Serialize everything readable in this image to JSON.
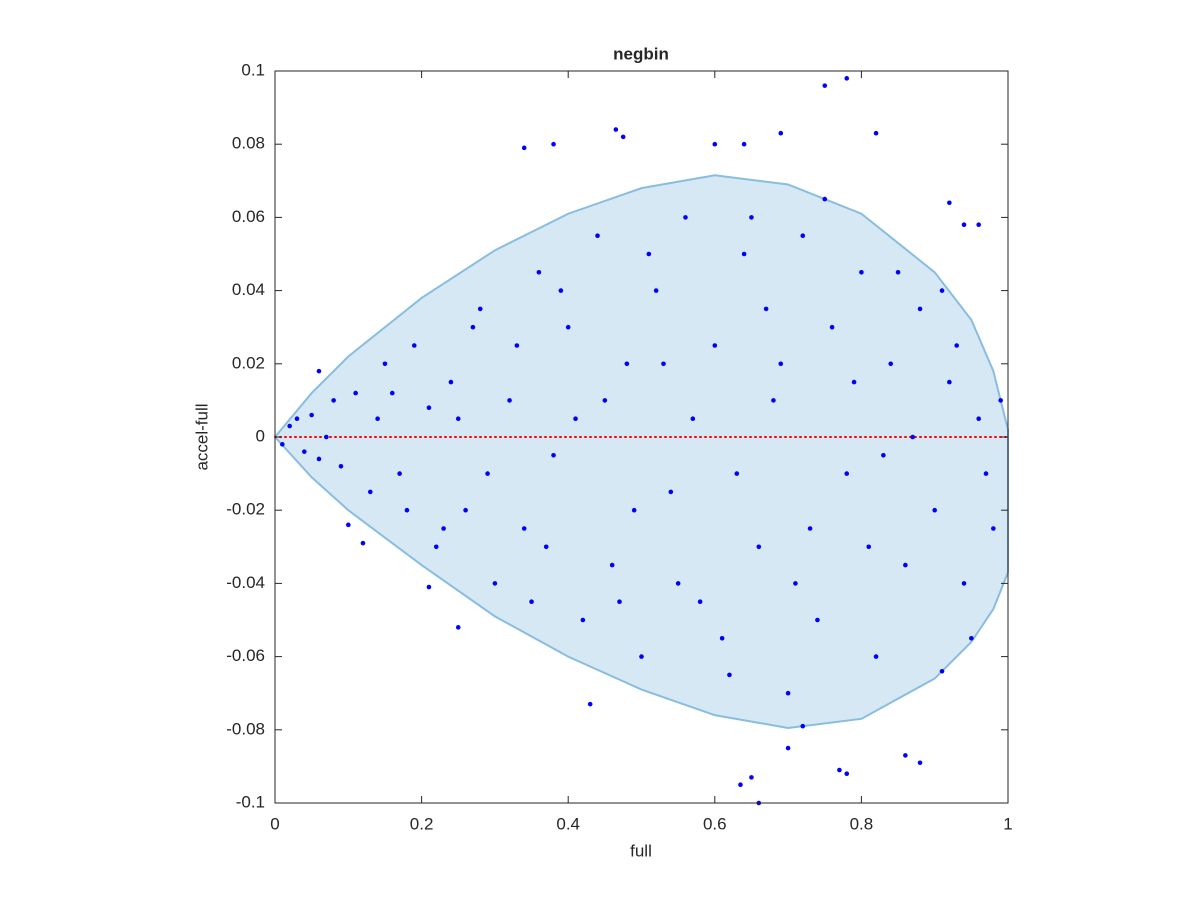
{
  "chart_data": {
    "type": "scatter",
    "title": "negbin",
    "x_label": "full",
    "y_label": "accel-full",
    "xlim": [
      0,
      1
    ],
    "ylim": [
      -0.1,
      0.1
    ],
    "xticks": [
      0,
      0.2,
      0.4,
      0.6,
      0.8,
      1
    ],
    "yticks": [
      -0.1,
      -0.08,
      -0.06,
      -0.04,
      -0.02,
      0,
      0.02,
      0.04,
      0.06,
      0.08,
      0.1
    ],
    "region": {
      "color": "#d6e8f4",
      "edge_color": "#89bde0",
      "x": [
        0,
        0.05,
        0.1,
        0.2,
        0.3,
        0.4,
        0.5,
        0.6,
        0.7,
        0.8,
        0.9,
        0.95,
        0.98,
        1
      ],
      "upper": [
        0,
        0.012,
        0.022,
        0.038,
        0.051,
        0.061,
        0.068,
        0.0715,
        0.069,
        0.061,
        0.045,
        0.032,
        0.018,
        0.002
      ],
      "lower": [
        0,
        -0.011,
        -0.02,
        -0.035,
        -0.049,
        -0.06,
        -0.069,
        -0.076,
        -0.0795,
        -0.077,
        -0.066,
        -0.056,
        -0.047,
        -0.037
      ]
    },
    "reference_line": {
      "y": 0,
      "color": "#ff0000"
    },
    "series": [
      {
        "color": "#0000ff",
        "x": [
          0.75,
          0.78,
          0.465,
          0.475,
          0.38,
          0.34,
          0.66,
          0.635,
          0.65,
          0.77,
          0.78,
          0.88,
          0.43,
          0.21,
          0.25,
          0.06,
          0.82,
          0.69,
          0.64,
          0.6,
          0.92,
          0.94,
          0.96,
          0.91,
          0.95,
          0.86,
          0.7,
          0.72,
          0.12,
          0.1,
          0.02,
          0.01,
          0.03,
          0.04,
          0.05,
          0.06,
          0.08,
          0.09,
          0.11,
          0.13,
          0.15,
          0.17,
          0.19,
          0.22,
          0.24,
          0.26,
          0.28,
          0.3,
          0.32,
          0.34,
          0.36,
          0.38,
          0.4,
          0.42,
          0.44,
          0.46,
          0.48,
          0.5,
          0.52,
          0.54,
          0.56,
          0.58,
          0.6,
          0.62,
          0.64,
          0.66,
          0.68,
          0.7,
          0.72,
          0.74,
          0.76,
          0.78,
          0.8,
          0.82,
          0.84,
          0.86,
          0.88,
          0.9,
          0.92,
          0.94,
          0.96,
          0.98,
          0.99,
          0.97,
          0.93,
          0.87,
          0.83,
          0.79,
          0.73,
          0.67,
          0.63,
          0.57,
          0.53,
          0.49,
          0.45,
          0.41,
          0.37,
          0.33,
          0.29,
          0.25,
          0.21,
          0.18,
          0.14,
          0.07,
          0.55,
          0.65,
          0.75,
          0.85,
          0.61,
          0.71,
          0.81,
          0.91,
          0.51,
          0.39,
          0.27,
          0.47,
          0.35,
          0.23,
          0.16,
          0.69
        ],
        "values": [
          0.096,
          0.098,
          0.084,
          0.082,
          0.08,
          0.079,
          -0.1,
          -0.095,
          -0.093,
          -0.091,
          -0.092,
          -0.089,
          -0.073,
          -0.041,
          -0.052,
          0.018,
          0.083,
          0.083,
          0.08,
          0.08,
          0.064,
          0.058,
          0.058,
          -0.064,
          -0.055,
          -0.087,
          -0.085,
          -0.079,
          -0.029,
          -0.024,
          0.003,
          -0.002,
          0.005,
          -0.004,
          0.006,
          -0.006,
          0.01,
          -0.008,
          0.012,
          -0.015,
          0.02,
          -0.01,
          0.025,
          -0.03,
          0.015,
          -0.02,
          0.035,
          -0.04,
          0.01,
          -0.025,
          0.045,
          -0.005,
          0.03,
          -0.05,
          0.055,
          -0.035,
          0.02,
          -0.06,
          0.04,
          -0.015,
          0.06,
          -0.045,
          0.025,
          -0.065,
          0.05,
          -0.03,
          0.01,
          -0.07,
          0.055,
          -0.05,
          0.03,
          -0.01,
          0.045,
          -0.06,
          0.02,
          -0.035,
          0.035,
          -0.02,
          0.015,
          -0.04,
          0.005,
          -0.025,
          0.01,
          -0.01,
          0.025,
          0,
          -0.005,
          0.015,
          -0.025,
          0.035,
          -0.01,
          0.005,
          0.02,
          -0.02,
          0.01,
          0.005,
          -0.03,
          0.025,
          -0.01,
          0.005,
          0.008,
          -0.02,
          0.005,
          0,
          -0.04,
          0.06,
          0.065,
          0.045,
          -0.055,
          -0.04,
          -0.03,
          0.04,
          0.05,
          0.04,
          0.03,
          -0.045,
          -0.045,
          -0.025,
          0.012,
          0.02
        ]
      }
    ]
  }
}
